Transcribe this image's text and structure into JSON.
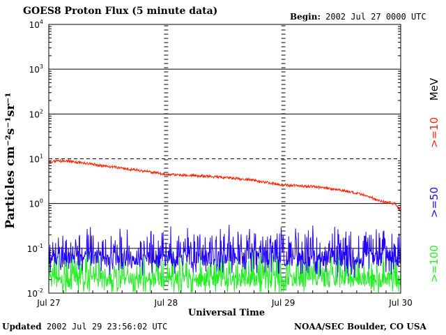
{
  "header": {
    "title": "GOES8 Proton Flux (5 minute data)",
    "begin_label": "Begin:",
    "begin_value": "2002 Jul 27 0000 UTC"
  },
  "footer": {
    "updated_label": "Updated",
    "updated_value": "2002 Jul 29 23:56:02 UTC",
    "credit": "NOAA/SEC Boulder, CO USA"
  },
  "chart_data": {
    "type": "line",
    "title": "GOES8 Proton Flux (5 minute data)",
    "xlabel": "Universal Time",
    "ylabel": "Particles cm⁻²s⁻¹sr⁻¹",
    "y_scale": "log",
    "ylim": [
      0.01,
      10000
    ],
    "y_ticks": [
      {
        "value": 10000,
        "base": "10",
        "exp": "4"
      },
      {
        "value": 1000,
        "base": "10",
        "exp": "3"
      },
      {
        "value": 100,
        "base": "10",
        "exp": "2"
      },
      {
        "value": 10,
        "base": "10",
        "exp": "1"
      },
      {
        "value": 1,
        "base": "10",
        "exp": "0"
      },
      {
        "value": 0.1,
        "base": "10",
        "exp": "-1"
      },
      {
        "value": 0.01,
        "base": "10",
        "exp": "-2"
      }
    ],
    "x_ticks": [
      "Jul 27",
      "Jul 28",
      "Jul 29",
      "Jul 30"
    ],
    "xlim_days": [
      0,
      3
    ],
    "grid": true,
    "dashed_line_at": 10,
    "series": [
      {
        "name": ">=10",
        "color": "#ff2200",
        "points": [
          [
            0.0,
            8.5
          ],
          [
            0.15,
            9.0
          ],
          [
            0.3,
            8.0
          ],
          [
            0.5,
            6.8
          ],
          [
            0.75,
            5.6
          ],
          [
            1.0,
            4.5
          ],
          [
            1.25,
            4.2
          ],
          [
            1.5,
            3.8
          ],
          [
            1.75,
            3.3
          ],
          [
            2.0,
            2.6
          ],
          [
            2.25,
            2.4
          ],
          [
            2.5,
            2.0
          ],
          [
            2.7,
            1.5
          ],
          [
            2.85,
            1.1
          ],
          [
            2.95,
            1.0
          ],
          [
            3.0,
            0.7
          ]
        ]
      },
      {
        "name": ">=50",
        "color": "#2200ff",
        "points": [
          [
            0.0,
            0.06
          ],
          [
            3.0,
            0.06
          ]
        ]
      },
      {
        "name": ">=100",
        "color": "#22ee22",
        "points": [
          [
            0.0,
            0.02
          ],
          [
            3.0,
            0.02
          ]
        ]
      }
    ],
    "legend_unit": "MeV",
    "legend_placement": "right, rotated vertical"
  }
}
